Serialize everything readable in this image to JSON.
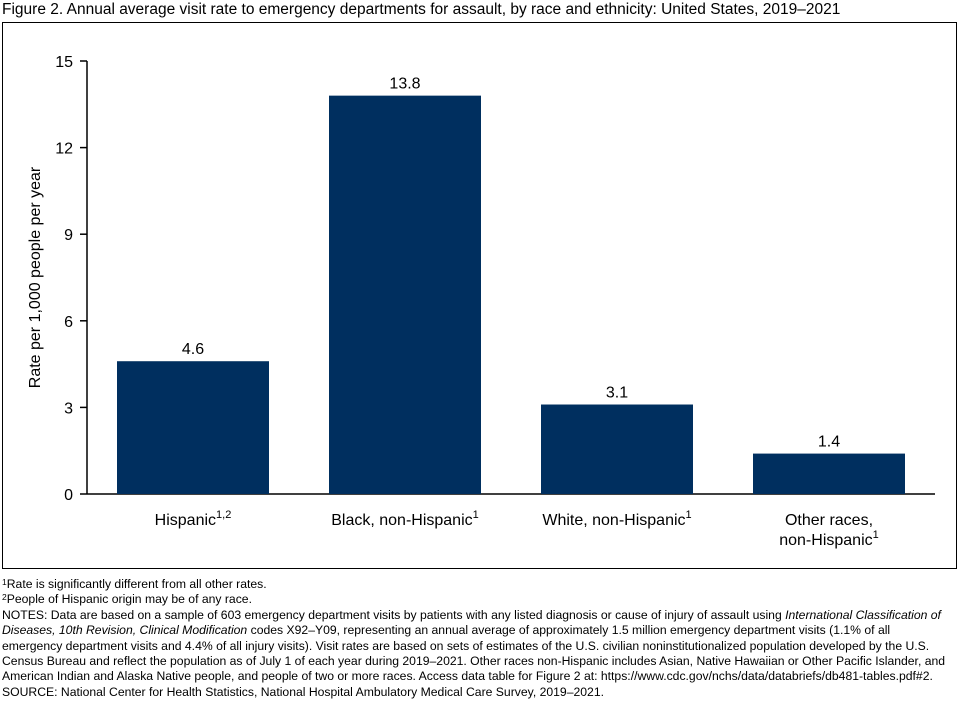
{
  "figure_title": "Figure 2. Annual average visit rate to emergency departments for assault, by race and ethnicity: United States, 2019–2021",
  "chart_data": {
    "type": "bar",
    "categories": [
      {
        "label": "Hispanic",
        "sup": "1,2",
        "lines": [
          "Hispanic"
        ]
      },
      {
        "label": "Black, non-Hispanic",
        "sup": "1",
        "lines": [
          "Black, non-Hispanic"
        ]
      },
      {
        "label": "White, non-Hispanic",
        "sup": "1",
        "lines": [
          "White, non-Hispanic"
        ]
      },
      {
        "label": "Other races, non-Hispanic",
        "sup": "1",
        "lines": [
          "Other races,",
          "non-Hispanic"
        ]
      }
    ],
    "values": [
      4.6,
      13.8,
      3.1,
      1.4
    ],
    "value_labels": [
      "4.6",
      "13.8",
      "3.1",
      "1.4"
    ],
    "ylabel": "Rate per 1,000 people per year",
    "ylim": [
      0,
      15
    ],
    "yticks": [
      0,
      3,
      6,
      9,
      12,
      15
    ],
    "grid": false,
    "bar_color": "#002f5f"
  },
  "footnotes": {
    "fn1_mark": "1",
    "fn1_text": "Rate is significantly different from all other rates.",
    "fn2_mark": "2",
    "fn2_text": "People of Hispanic origin may be of any race.",
    "notes_prefix": "NOTES: Data are based on a sample of 603 emergency department visits by patients with any listed diagnosis or cause of injury of assault using ",
    "notes_italic": "International Classification of Diseases, 10th Revision, Clinical Modification",
    "notes_suffix": " codes X92–Y09, representing an annual average of approximately 1.5 million emergency department visits (1.1% of all emergency department visits and 4.4% of all injury visits). Visit rates are based on sets of estimates of the U.S. civilian noninstitutionalized population developed by the U.S. Census Bureau and reflect the population as of July 1 of each year during 2019–2021. Other races non-Hispanic includes Asian, Native Hawaiian or Other Pacific Islander, and American Indian and Alaska Native people, and people of two or more races. Access data table for Figure 2 at: https://www.cdc.gov/nchs/data/databriefs/db481-tables.pdf#2.",
    "source": "SOURCE: National Center for Health Statistics, National Hospital Ambulatory Medical Care Survey, 2019–2021."
  }
}
